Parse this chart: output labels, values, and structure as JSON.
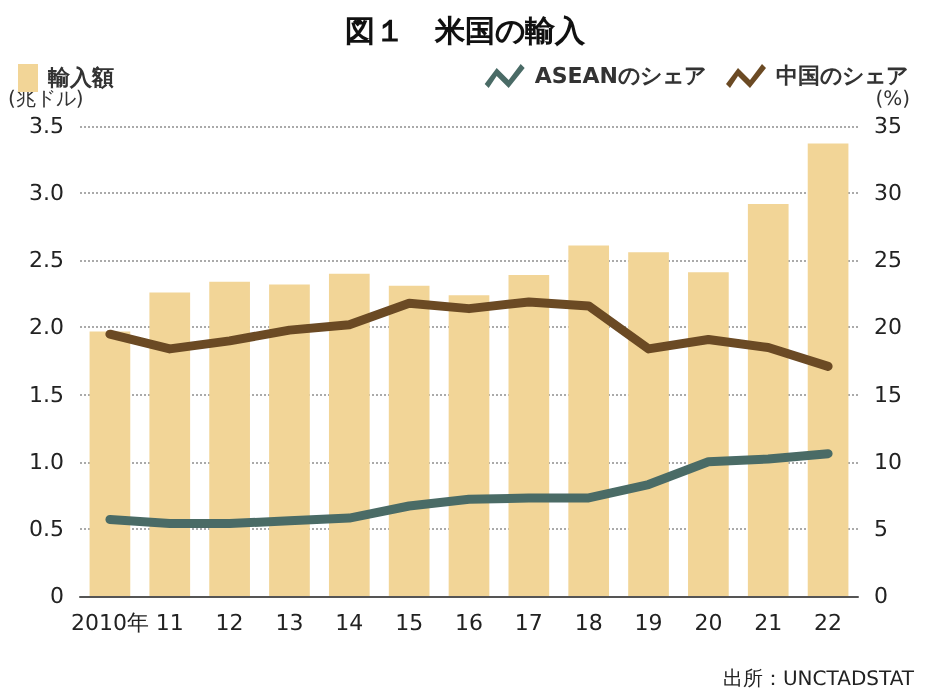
{
  "chart_data": {
    "type": "bar",
    "title": "図１　米国の輸入",
    "ylabel": "(兆ドル)",
    "y2label": "(%)",
    "annotations": [
      "出所：UNCTADSTAT"
    ],
    "categories": [
      "2010年",
      "11",
      "12",
      "13",
      "14",
      "15",
      "16",
      "17",
      "18",
      "19",
      "20",
      "21",
      "22"
    ],
    "series": [
      {
        "name": "輸入額",
        "color": "#f2d597",
        "values": [
          1.97,
          2.26,
          2.34,
          2.32,
          2.4,
          2.31,
          2.24,
          2.39,
          2.61,
          2.56,
          2.41,
          2.92,
          3.37
        ]
      },
      {
        "name": "ASEANのシェア",
        "type": "line",
        "axis": "y2",
        "color": "#4a6b66",
        "values": [
          5.7,
          5.4,
          5.4,
          5.6,
          5.8,
          6.7,
          7.2,
          7.3,
          7.3,
          8.3,
          10.0,
          10.2,
          10.6
        ]
      },
      {
        "name": "中国のシェア",
        "type": "line",
        "axis": "y2",
        "color": "#6b4a24",
        "values": [
          19.5,
          18.4,
          19.0,
          19.8,
          20.2,
          21.8,
          21.4,
          21.9,
          21.6,
          18.4,
          19.1,
          18.5,
          17.1
        ]
      }
    ],
    "ylim": [
      0,
      3.5
    ],
    "yticks": [
      0,
      0.5,
      {
        "value": 1,
        "label": "1.0"
      },
      1.5,
      {
        "value": 2,
        "label": "2.0"
      },
      2.5,
      {
        "value": 3,
        "label": "3.0"
      },
      3.5
    ],
    "y2lim": [
      0,
      35
    ],
    "y2ticks": [
      0,
      5,
      10,
      15,
      20,
      25,
      30,
      35
    ],
    "grid": "y",
    "legend": "top",
    "marker": "none",
    "line_style": "solid"
  }
}
